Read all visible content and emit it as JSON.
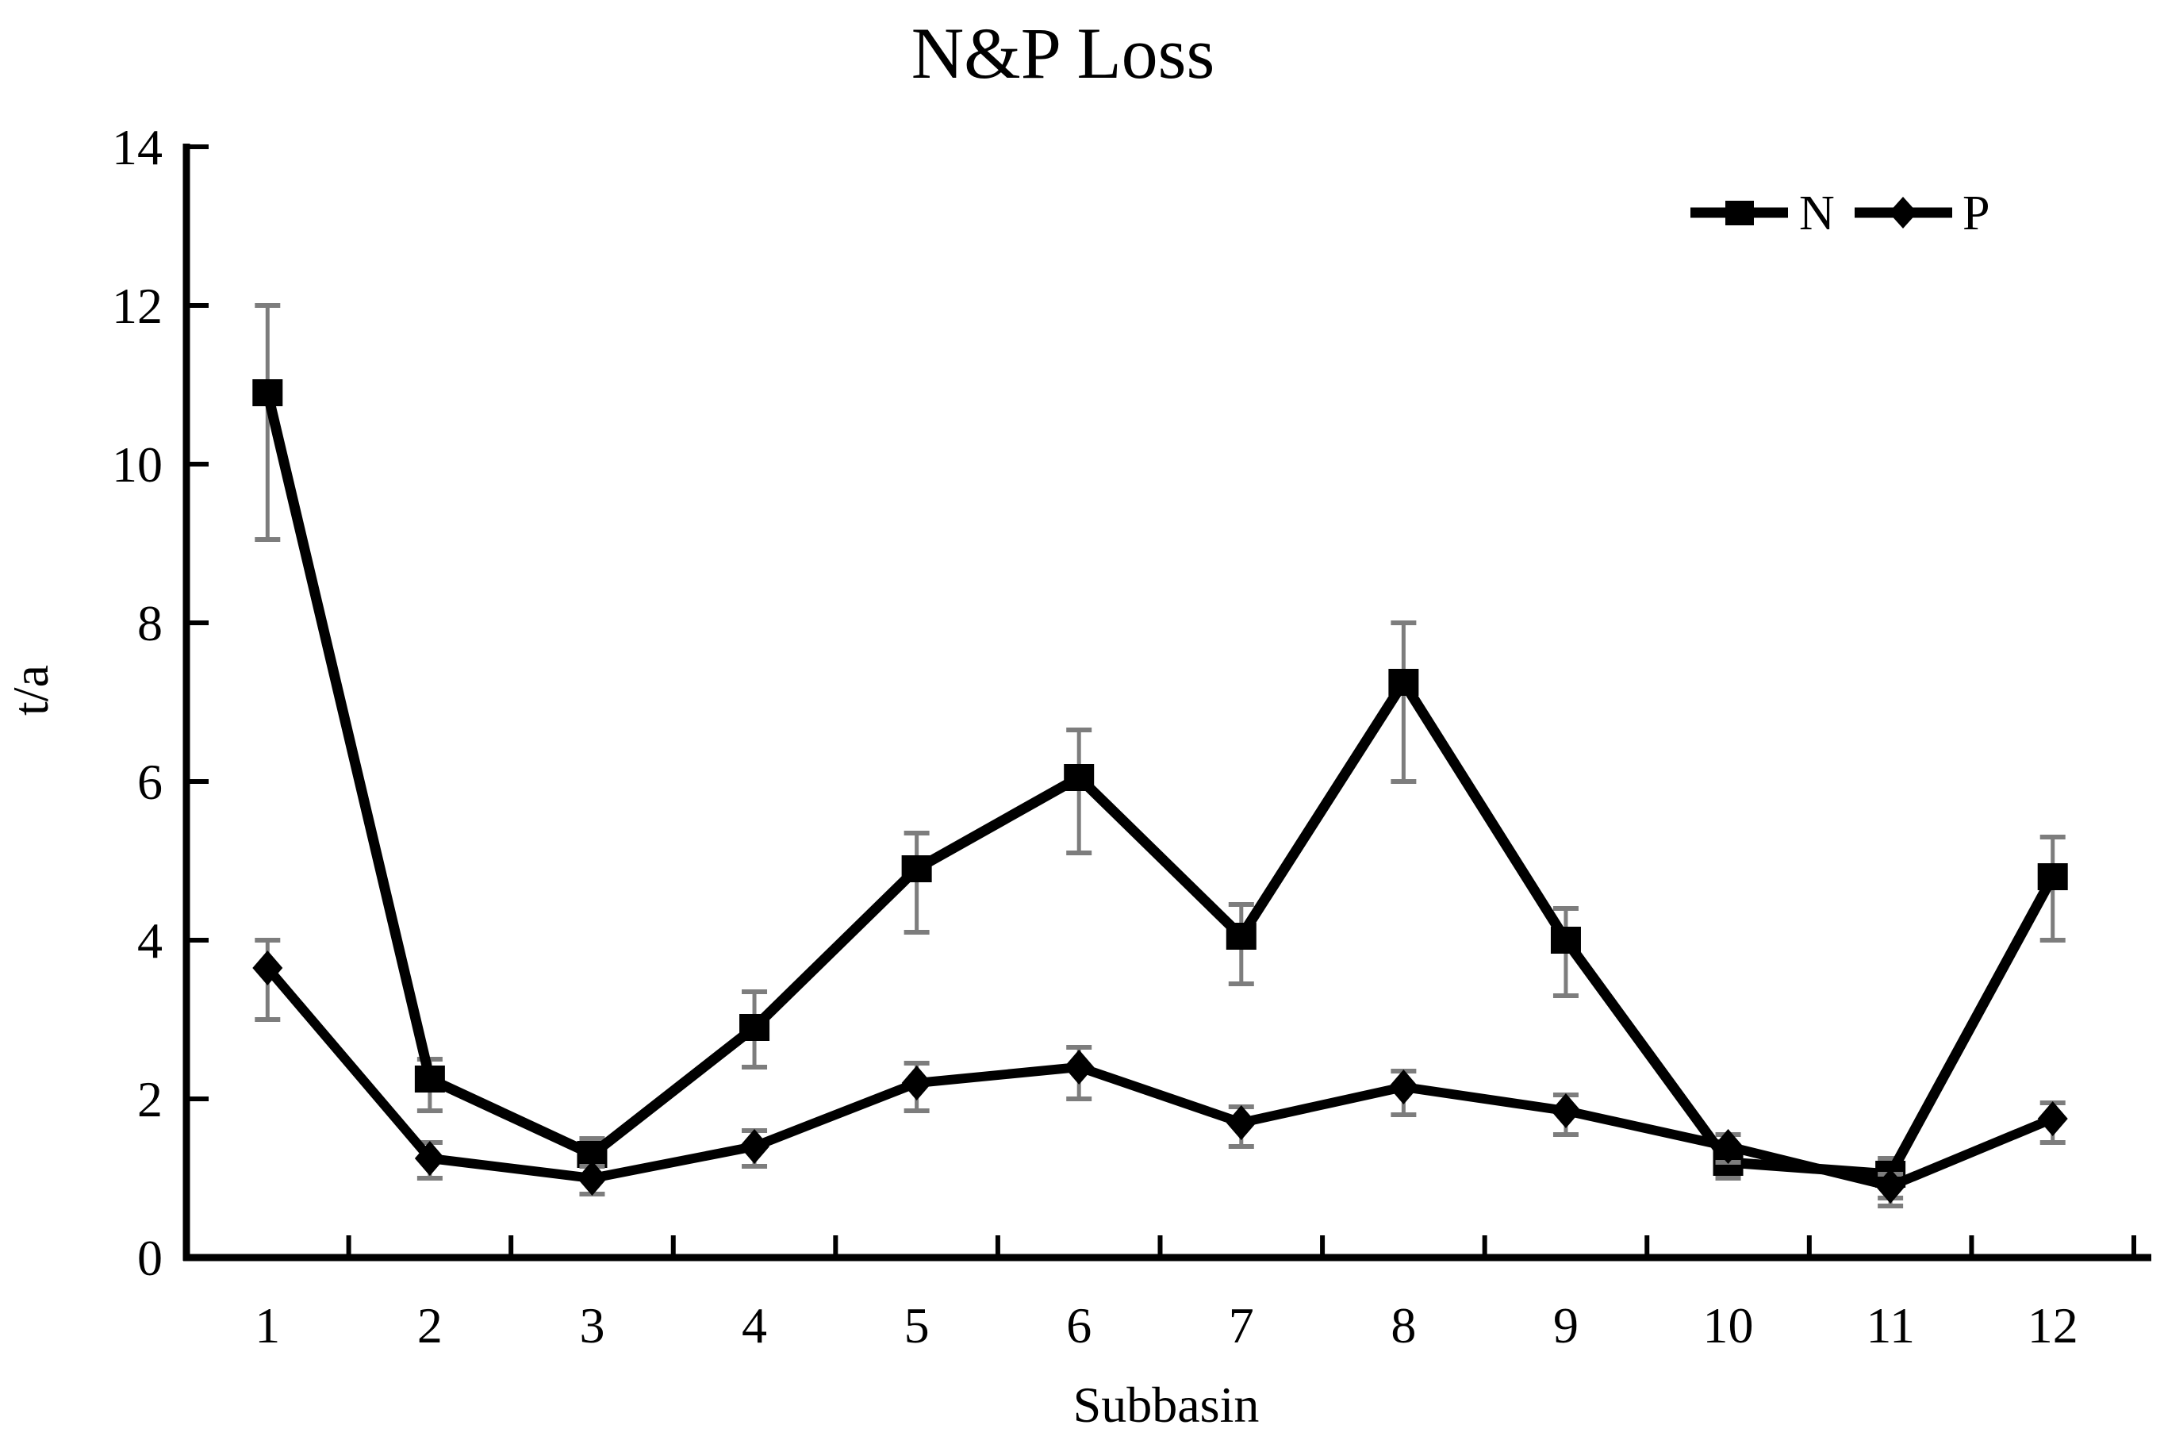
{
  "title": "N&P Loss",
  "axes": {
    "y_label": "t/a",
    "x_label": "Subbasin"
  },
  "legend": {
    "items": [
      {
        "label": "N",
        "marker": "square"
      },
      {
        "label": "P",
        "marker": "diamond"
      }
    ],
    "position": "top-right"
  },
  "chart_data": {
    "type": "line",
    "title": "N&P Loss",
    "xlabel": "Subbasin",
    "ylabel": "t/a",
    "ylim": [
      0,
      14
    ],
    "yticks": [
      0,
      2,
      4,
      6,
      8,
      10,
      12,
      14
    ],
    "categories": [
      "1",
      "2",
      "3",
      "4",
      "5",
      "6",
      "7",
      "8",
      "9",
      "10",
      "11",
      "12"
    ],
    "grid": false,
    "legend_position": "top-right",
    "error_bars": true,
    "series": [
      {
        "name": "N",
        "marker": "square",
        "values": [
          10.9,
          2.25,
          1.3,
          2.9,
          4.9,
          6.05,
          4.05,
          7.25,
          4.0,
          1.2,
          1.05,
          4.8
        ],
        "err_up": [
          1.1,
          0.25,
          0.2,
          0.45,
          0.45,
          0.6,
          0.4,
          0.75,
          0.4,
          0.2,
          0.2,
          0.5
        ],
        "err_down": [
          1.85,
          0.4,
          0.3,
          0.5,
          0.8,
          0.95,
          0.6,
          1.25,
          0.7,
          0.2,
          0.3,
          0.8
        ]
      },
      {
        "name": "P",
        "marker": "diamond",
        "values": [
          3.65,
          1.25,
          1.0,
          1.4,
          2.2,
          2.4,
          1.7,
          2.15,
          1.85,
          1.4,
          0.9,
          1.75
        ],
        "err_up": [
          0.35,
          0.2,
          0.15,
          0.2,
          0.25,
          0.25,
          0.2,
          0.2,
          0.2,
          0.15,
          0.15,
          0.2
        ],
        "err_down": [
          0.65,
          0.25,
          0.2,
          0.25,
          0.35,
          0.4,
          0.3,
          0.35,
          0.3,
          0.2,
          0.25,
          0.3
        ]
      }
    ],
    "colors": {
      "series": "#000000",
      "error_bars": "#7d7d7d",
      "background": "#ffffff",
      "axis": "#000000"
    }
  }
}
